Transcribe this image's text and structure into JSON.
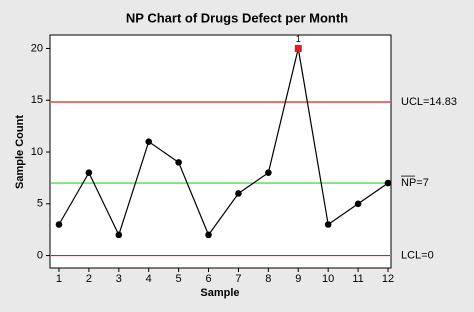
{
  "chart_data": {
    "type": "np-chart",
    "title": "NP Chart of Drugs Defect per Month",
    "x_label": "Sample",
    "y_label": "Sample Count",
    "x": [
      1,
      2,
      3,
      4,
      5,
      6,
      7,
      8,
      9,
      10,
      11,
      12
    ],
    "values": [
      3,
      8,
      2,
      11,
      9,
      2,
      6,
      8,
      20,
      3,
      5,
      7
    ],
    "color": "#000000",
    "flags": [
      null,
      null,
      null,
      null,
      null,
      null,
      null,
      null,
      "1",
      null,
      null,
      null
    ],
    "flag_color": "#e31a1c",
    "control_lines": [
      {
        "label": "UCL=14.83",
        "value": 14.83,
        "color": "#e31a1c"
      },
      {
        "label": "NP=7",
        "value": 7,
        "color": "#22dd22"
      },
      {
        "label": "LCL=0",
        "value": 0,
        "color": "#e31a1c"
      }
    ],
    "xlim": [
      0.7,
      12.1
    ],
    "xticks": [
      1,
      2,
      3,
      4,
      5,
      6,
      7,
      8,
      9,
      10,
      11,
      12
    ],
    "ylim": [
      -1.2,
      21.3
    ],
    "yticks": [
      0,
      5,
      10,
      15,
      20
    ]
  }
}
